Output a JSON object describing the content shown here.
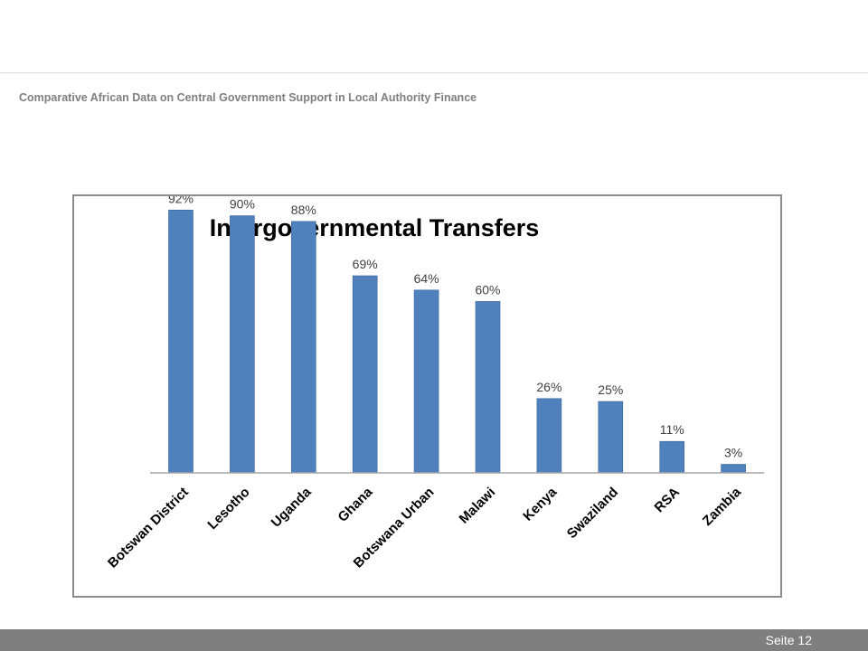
{
  "slide": {
    "subtitle": "Comparative African Data on Central Government Support in Local Authority Finance",
    "page_label": "Seite 12"
  },
  "colors": {
    "bar": "#4f81bd",
    "bar_outline": "#3a6494",
    "axis": "#a6a6a6",
    "footer": "#7f7f7f",
    "subtitle": "#7f7f7f"
  },
  "chart_data": {
    "type": "bar",
    "title": "Intergovernmental Transfers",
    "categories": [
      "Botswan District",
      "Lesotho",
      "Uganda",
      "Ghana",
      "Botswana Urban",
      "Malawi",
      "Kenya",
      "Swaziland",
      "RSA",
      "Zambia"
    ],
    "values": [
      92,
      90,
      88,
      69,
      64,
      60,
      26,
      25,
      11,
      3
    ],
    "value_labels": [
      "92%",
      "90%",
      "88%",
      "69%",
      "64%",
      "60%",
      "26%",
      "25%",
      "11%",
      "3%"
    ],
    "unit": "%",
    "ylim": [
      0,
      100
    ],
    "grid": false,
    "legend": "none",
    "x_label_rotation": "-45"
  }
}
